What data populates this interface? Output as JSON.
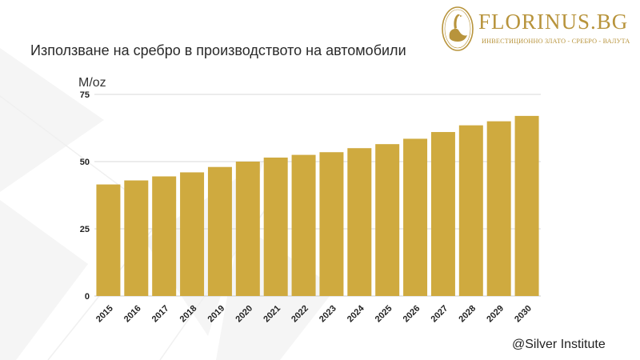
{
  "title": "Използване на сребро в производството на автомобили",
  "logo": {
    "name": "FLORINUS.BG",
    "tagline": "ИНВЕСТИЦИОННО ЗЛАТО - СРЕБРО - ВАЛУТА"
  },
  "source": "@Silver Institute",
  "colors": {
    "bar": "#cfaa3f",
    "grid": "#cccccc",
    "brand": "#b8943c"
  },
  "chart_data": {
    "type": "bar",
    "ylabel": "M/oz",
    "ylim": [
      0,
      75
    ],
    "yticks": [
      0,
      25,
      50,
      75
    ],
    "grid": true,
    "categories": [
      "2015",
      "2016",
      "2017",
      "2018",
      "2019",
      "2020",
      "2021",
      "2022",
      "2023",
      "2024",
      "2025",
      "2026",
      "2027",
      "2028",
      "2029",
      "2030"
    ],
    "values": [
      41.5,
      43,
      44.5,
      46,
      48,
      50,
      51.5,
      52.5,
      53.5,
      55,
      56.5,
      58.5,
      61,
      63.5,
      65,
      67
    ]
  }
}
